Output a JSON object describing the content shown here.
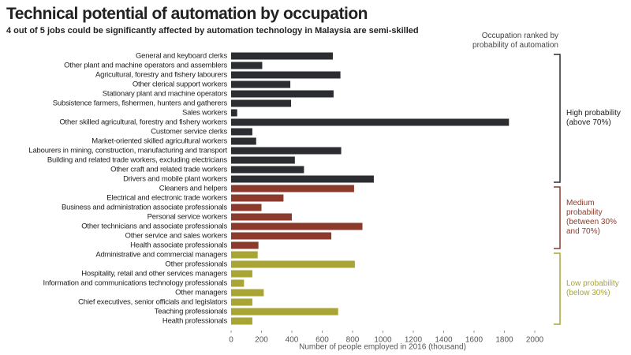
{
  "chart_data": {
    "type": "bar",
    "orientation": "horizontal",
    "title": "Technical potential of automation by occupation",
    "subtitle": "4 out of 5 jobs could be significantly affected by automation technology in Malaysia are semi-skilled",
    "annotation": "Occupation ranked by probability of automation",
    "x_label": "Number of people employed in 2016 (thousand)",
    "categories": [
      "General and keyboard clerks",
      "Other plant and machine operators and assemblers",
      "Agricultural, forestry and fishery labourers",
      "Other clerical support workers",
      "Stationary plant and machine operators",
      "Subsistence farmers, fishermen, hunters and gatherers",
      "Sales workers",
      "Other skilled agricultural, forestry and fishery workers",
      "Customer service clerks",
      "Market-oriented skilled agricultural workers",
      "Labourers in mining, construction, manufacturing and transport",
      "Building and related trade workers, excluding electricians",
      "Other craft and related trade workers",
      "Drivers and mobile plant workers",
      "Cleaners and helpers",
      "Electrical and electronic trade workers",
      "Business and administration associate professionals",
      "Personal service workers",
      "Other technicians and associate professionals",
      "Other service and sales workers",
      "Health associate professionals",
      "Administrative and commercial managers",
      "Other professionals",
      "Hospitality, retail and other services managers",
      "Information and communications technology professionals",
      "Other managers",
      "Chief executives, senior officials and legislators",
      "Teaching professionals",
      "Health professionals"
    ],
    "series": [
      {
        "name": "High probability (above 70%)",
        "color": "#2b2d31",
        "values": [
          670,
          205,
          720,
          390,
          675,
          395,
          40,
          1830,
          140,
          165,
          725,
          420,
          480,
          940,
          null,
          null,
          null,
          null,
          null,
          null,
          null,
          null,
          null,
          null,
          null,
          null,
          null,
          null,
          null
        ]
      },
      {
        "name": "Medium probability (between 30% and 70%)",
        "color": "#8b3a2c",
        "values": [
          null,
          null,
          null,
          null,
          null,
          null,
          null,
          null,
          null,
          null,
          null,
          null,
          null,
          null,
          810,
          345,
          200,
          400,
          865,
          660,
          180,
          null,
          null,
          null,
          null,
          null,
          null,
          null,
          null
        ]
      },
      {
        "name": "Low probability (below 30%)",
        "color": "#a8a534",
        "values": [
          null,
          null,
          null,
          null,
          null,
          null,
          null,
          null,
          null,
          null,
          null,
          null,
          null,
          null,
          null,
          null,
          null,
          null,
          null,
          null,
          null,
          175,
          815,
          140,
          85,
          215,
          140,
          705,
          140
        ]
      }
    ],
    "xlim": [
      0,
      2000
    ],
    "xticks": [
      0,
      200,
      400,
      600,
      800,
      1000,
      1200,
      1400,
      1600,
      1800,
      2000
    ]
  }
}
